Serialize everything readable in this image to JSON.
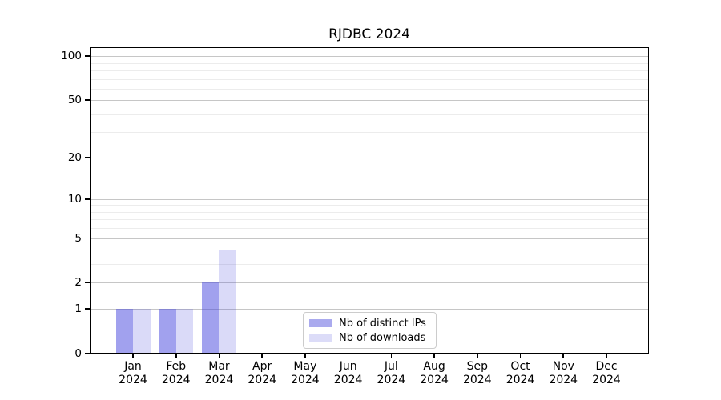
{
  "figure_title": "RJDBC 2024",
  "chart_data": {
    "type": "bar",
    "title": "RJDBC 2024",
    "categories": [
      "Jan",
      "Feb",
      "Mar",
      "Apr",
      "May",
      "Jun",
      "Jul",
      "Aug",
      "Sep",
      "Oct",
      "Nov",
      "Dec"
    ],
    "year": "2024",
    "series": [
      {
        "name": "Nb of distinct IPs",
        "color": "rgba(68,68,221,0.5)",
        "solid_color": "#AAAAEE",
        "values": [
          1,
          1,
          2,
          0,
          0,
          0,
          0,
          0,
          0,
          0,
          0,
          0
        ]
      },
      {
        "name": "Nb of downloads",
        "color": "rgba(68,68,221,0.2)",
        "solid_color": "#DCDCF8",
        "values": [
          1,
          1,
          4,
          0,
          0,
          0,
          0,
          0,
          0,
          0,
          0,
          0
        ]
      }
    ],
    "yscale": "log1p",
    "ylim": [
      0,
      115
    ],
    "yticks": [
      100,
      50,
      20,
      10,
      5,
      2,
      1,
      0
    ],
    "minor_gridlines": [
      90,
      80,
      70,
      60,
      40,
      30,
      9,
      8,
      7,
      6,
      4,
      3
    ],
    "grid": "horizontal",
    "legend_position": "lower center"
  },
  "colors": {
    "bar_distinct_ips": "#AAAAEE",
    "bar_downloads": "#DCDCF8",
    "grid_major": "#c6c6c6",
    "grid_minor": "#ececec",
    "axis_frame": "#000000",
    "legend_border": "#cccccc",
    "background": "#ffffff"
  }
}
